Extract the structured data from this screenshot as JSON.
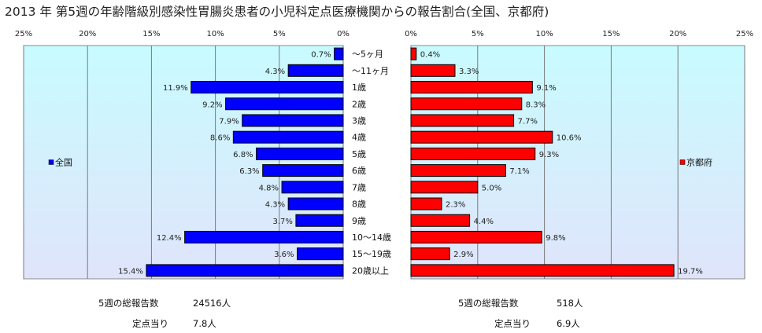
{
  "title": "2013 年 第5週の年齢階級別感染性胃腸炎患者の小児科定点医療機関からの報告割合(全国、京都府)",
  "chart_data": {
    "type": "bar",
    "orientation": "horizontal-back-to-back",
    "categories": [
      "～5ヶ月",
      "～11ヶ月",
      "1歳",
      "2歳",
      "3歳",
      "4歳",
      "5歳",
      "6歳",
      "7歳",
      "8歳",
      "9歳",
      "10～14歳",
      "15～19歳",
      "20歳以上"
    ],
    "series": [
      {
        "name": "全国",
        "color": "#0000ff",
        "values": [
          0.7,
          4.3,
          11.9,
          9.2,
          7.9,
          8.6,
          6.8,
          6.3,
          4.8,
          4.3,
          3.7,
          12.4,
          3.6,
          15.4
        ],
        "value_labels": [
          "0.7%",
          "4.3%",
          "11.9%",
          "9.2%",
          "7.9%",
          "8.6%",
          "6.8%",
          "6.3%",
          "4.8%",
          "4.3%",
          "3.7%",
          "12.4%",
          "3.6%",
          "15.4%"
        ]
      },
      {
        "name": "京都府",
        "color": "#ff0000",
        "values": [
          0.4,
          3.3,
          9.1,
          8.3,
          7.7,
          10.6,
          9.3,
          7.1,
          5.0,
          2.3,
          4.4,
          9.8,
          2.9,
          19.7
        ],
        "value_labels": [
          "0.4%",
          "3.3%",
          "9.1%",
          "8.3%",
          "7.7%",
          "10.6%",
          "9.3%",
          "7.1%",
          "5.0%",
          "2.3%",
          "4.4%",
          "9.8%",
          "2.9%",
          "19.7%"
        ]
      }
    ],
    "xlim": [
      0,
      25
    ],
    "left_ticks": [
      "25%",
      "20%",
      "15%",
      "10%",
      "5%",
      "0%"
    ],
    "right_ticks": [
      "0%",
      "5%",
      "10%",
      "15%",
      "20%",
      "25%"
    ],
    "grid": true,
    "plot_background": "#ccffff",
    "legend_placement": "inside each panel, vertically centered"
  },
  "footer": {
    "left": {
      "total_label": "5週の総報告数",
      "total_value": "24516人",
      "per_label": "定点当り",
      "per_value": "7.8人"
    },
    "right": {
      "total_label": "5週の総報告数",
      "total_value": "518人",
      "per_label": "定点当り",
      "per_value": "6.9人"
    }
  }
}
